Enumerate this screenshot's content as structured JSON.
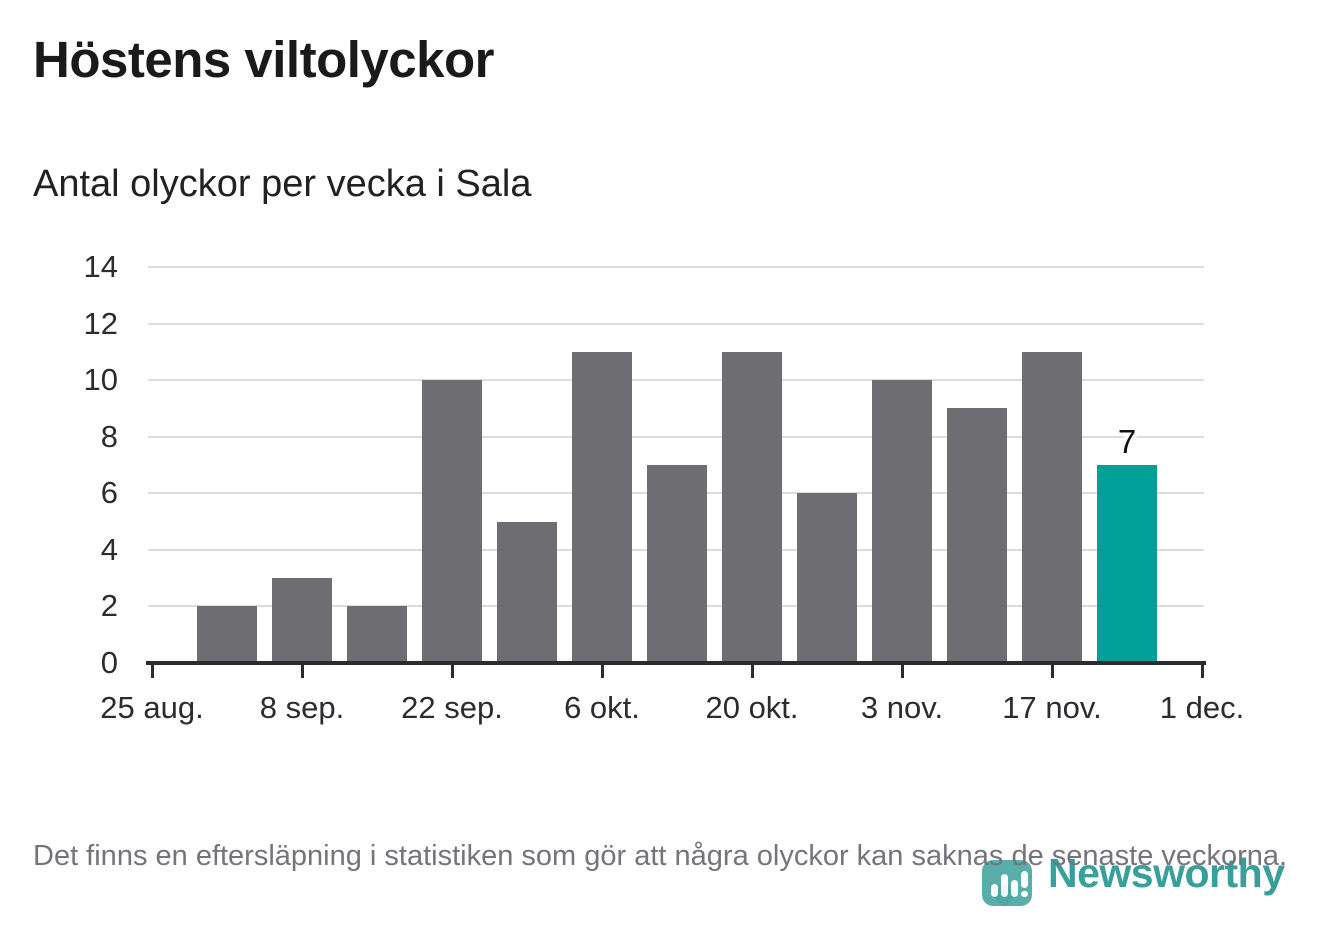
{
  "header": {
    "title": "Höstens viltolyckor",
    "subtitle": "Antal olyckor per vecka i Sala"
  },
  "chart_data": {
    "type": "bar",
    "title": "Höstens viltolyckor",
    "subtitle": "Antal olyckor per vecka i Sala",
    "x_tick_labels": [
      "25 aug.",
      "8 sep.",
      "22 sep.",
      "6 okt.",
      "20 okt.",
      "3 nov.",
      "17 nov.",
      "1 dec."
    ],
    "y_ticks": [
      0,
      2,
      4,
      6,
      8,
      10,
      12,
      14
    ],
    "ylim": [
      0,
      14
    ],
    "values": [
      2,
      3,
      2,
      10,
      5,
      11,
      7,
      11,
      6,
      10,
      9,
      11,
      7
    ],
    "highlight_index": 12,
    "highlight_value_label": "7",
    "grid": true,
    "legend_position": "none",
    "colors": {
      "bar": "#6d6d72",
      "highlight": "#00a096",
      "grid": "#dcdcdd",
      "axis": "#2c2c30"
    }
  },
  "footer": {
    "note": "Det finns en eftersläpning i statistiken som gör att några olyckor kan saknas de senaste veckorna."
  },
  "branding": {
    "wordmark": "Newsworthy",
    "logo_icon": "bar-chart-pin-icon",
    "accent_color": "#38a09b"
  }
}
